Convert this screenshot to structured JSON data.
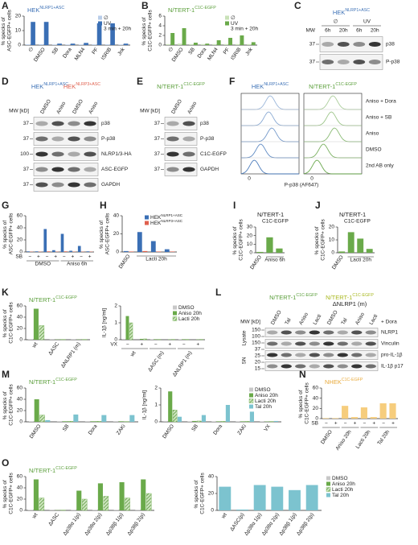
{
  "chart_data": [
    {
      "type": "bar",
      "letter": "A",
      "title": "HEK",
      "title_sup": "NLRP1+ASC",
      "title_color": "#3a6fb5",
      "ylabel": "% specks of ASC-EGFP+ cells",
      "categories": [
        "∅",
        "DMSO",
        "SB",
        "Dora",
        "MLN4",
        "PF",
        "ISRIB",
        "Jnk"
      ],
      "series": [
        {
          "name": "∅",
          "color": "#b9cde9",
          "values": [
            0.5,
            0.6,
            0.4,
            0.4,
            0.4,
            0.5,
            0.5,
            0.4
          ]
        },
        {
          "name": "UV",
          "color": "#3a6fb5",
          "values": [
            16,
            16,
            1,
            1,
            1.5,
            15,
            15,
            1
          ]
        }
      ],
      "legend": "top-right",
      "legend_note": "3 min + 20h",
      "ylim": [
        0,
        20
      ],
      "yticks": [
        0,
        10,
        20
      ]
    },
    {
      "type": "bar",
      "letter": "B",
      "title": "N/TERT-1",
      "title_sup": "C1C-EGFP",
      "title_color": "#5a9e3a",
      "ylabel": "% specks of C1C-EGFP+ cells",
      "categories": [
        "∅",
        "DMSO",
        "SB",
        "Dora",
        "MLN4",
        "PF",
        "ISRIB",
        "Jnk"
      ],
      "series": [
        {
          "name": "∅",
          "color": "#c9e2b8",
          "values": [
            0.2,
            0.3,
            0.2,
            0.2,
            0.2,
            0.2,
            0.2,
            0.2
          ]
        },
        {
          "name": "UV",
          "color": "#6aaa4a",
          "values": [
            2.5,
            3.5,
            0.5,
            0.3,
            1,
            1.5,
            2,
            0.6
          ]
        }
      ],
      "legend": "top-right",
      "legend_note": "3 min + 20h",
      "ylim": [
        0,
        6
      ],
      "yticks": [
        0,
        2,
        4,
        6
      ]
    },
    {
      "type": "bar",
      "letter": "G",
      "ylabel": "% specks of ASC-EGFP+ cells",
      "categories": [
        "−",
        "+",
        "−",
        "+",
        "−",
        "+",
        "−",
        "+"
      ],
      "row_label": "SB",
      "group_labels": [
        "DMSO",
        "Aniso 6h"
      ],
      "series": [
        {
          "color": "#3a6fb5",
          "values": [
            1,
            1,
            38,
            3,
            30,
            2,
            10,
            1
          ]
        },
        {
          "color": "#e0604e",
          "values": [
            0.5,
            0.5,
            1,
            0.5,
            1,
            0.5,
            0.5,
            0.5
          ]
        }
      ],
      "ylim": [
        0,
        60
      ],
      "yticks": [
        0,
        20,
        40,
        60
      ]
    },
    {
      "type": "bar",
      "letter": "H",
      "ylabel": "% specks of ASC-EGFP+ cells",
      "categories": [
        "DMSO",
        null,
        null,
        null
      ],
      "group_labels": [
        "Lacti 20h"
      ],
      "series": [
        {
          "name": "HEK",
          "name_sup": "NLRP1+ASC",
          "color": "#3a6fb5",
          "values": [
            1,
            22,
            12,
            3
          ]
        },
        {
          "name": "HEK",
          "name_sup": "NLRP3+ASC",
          "color": "#e0604e",
          "values": [
            0.5,
            1,
            0.5,
            0.5
          ]
        }
      ],
      "legend": "top-right",
      "ylim": [
        0,
        40
      ],
      "yticks": [
        0,
        20,
        40
      ]
    },
    {
      "type": "bar",
      "letter": "I",
      "title": "N/TERT-1",
      "subtitle": "C1C-EGFP",
      "title_color": "#5a9e3a",
      "ylabel": "% specks of C1C-EGFP+ cells",
      "categories": [
        "DMSO",
        null,
        null
      ],
      "group_labels": [
        "Aniso 6h"
      ],
      "series": [
        {
          "color": "#6aaa4a",
          "values": [
            1,
            18,
            5
          ]
        }
      ],
      "ylim": [
        0,
        30
      ],
      "yticks": [
        0,
        10,
        20,
        30
      ]
    },
    {
      "type": "bar",
      "letter": "J",
      "title": "N/TERT-1",
      "subtitle": "C1C-EGFP",
      "title_color": "#5a9e3a",
      "ylabel": "% specks of C1C-EGFP+ cells",
      "categories": [
        "DMSO",
        null,
        null,
        null
      ],
      "group_labels": [
        "Lacti 20h"
      ],
      "series": [
        {
          "color": "#6aaa4a",
          "values": [
            1,
            16,
            11,
            3
          ]
        }
      ],
      "ylim": [
        0,
        20
      ],
      "yticks": [
        0,
        10,
        20
      ]
    },
    {
      "type": "bar",
      "letter": "K",
      "title": "N/TERT-1",
      "title_sup": "C1C-EGFP",
      "title_color": "#5a9e3a",
      "ylabel": "% specks of C1C-EGFP+ cells",
      "categories": [
        "wt",
        "ΔASC",
        "ΔNLRP1 (m)"
      ],
      "series": [
        {
          "color": "#c8c8c8",
          "values": [
            1,
            0.5,
            0.5
          ]
        },
        {
          "color": "#6aaa4a",
          "values": [
            55,
            0.5,
            0.5
          ]
        },
        {
          "color": "#6aaa4a",
          "pattern": "hatched",
          "values": [
            25,
            0.5,
            0.5
          ]
        }
      ],
      "ylim": [
        0,
        60
      ],
      "yticks": [
        0,
        20,
        40,
        60
      ]
    },
    {
      "type": "bar",
      "ylabel": "IL-1β [ng/ml]",
      "categories": [
        "−",
        "+",
        "−",
        "+",
        "−",
        "+"
      ],
      "row_label": "VX",
      "group_labels": [
        "wt",
        "ΔASC (m)",
        "ΔNLRP1 (m)"
      ],
      "series": [
        {
          "name": "DMSO",
          "color": "#c8c8c8",
          "values": [
            0.05,
            0,
            0.02,
            0,
            0.02,
            0
          ]
        },
        {
          "name": "Aniso 20h",
          "color": "#6aaa4a",
          "values": [
            1.4,
            0.05,
            0.03,
            0.02,
            0.03,
            0.02
          ]
        },
        {
          "name": "Lacti 20h",
          "color": "#6aaa4a",
          "pattern": "hatched",
          "values": [
            1.0,
            0.05,
            0.02,
            0.02,
            0.02,
            0.02
          ]
        }
      ],
      "legend": "top-right",
      "ylim": [
        0,
        2
      ],
      "yticks": [
        0,
        1,
        2
      ]
    },
    {
      "type": "bar",
      "letter": "M",
      "title": "N/TERT-1",
      "title_sup": "C1C-EGFP",
      "title_color": "#5a9e3a",
      "ylabel": "% specks of C1C-EGFP+ cells",
      "categories": [
        "DMSO",
        "SB",
        "Dora",
        "ZAKi"
      ],
      "series": [
        {
          "color": "#c8c8c8",
          "values": [
            1,
            0.5,
            0.5,
            0.5
          ]
        },
        {
          "color": "#6aaa4a",
          "values": [
            40,
            1,
            1,
            1
          ]
        },
        {
          "color": "#6aaa4a",
          "pattern": "hatched",
          "values": [
            12,
            1,
            1,
            0.5
          ]
        },
        {
          "color": "#7cc3cf",
          "values": [
            3,
            13,
            12,
            12
          ]
        }
      ],
      "ylim": [
        0,
        60
      ],
      "yticks": [
        0,
        20,
        40,
        60
      ]
    },
    {
      "type": "bar",
      "ylabel": "IL-1β [ng/ml]",
      "categories": [
        "DMSO",
        "SB",
        "Dora",
        "ZAKi",
        "VX"
      ],
      "series": [
        {
          "name": "DMSO",
          "color": "#c8c8c8",
          "values": [
            0.05,
            0.02,
            0.02,
            0.02,
            0.02
          ]
        },
        {
          "name": "Aniso 20h",
          "color": "#6aaa4a",
          "values": [
            1.8,
            0.05,
            0.03,
            0.03,
            0.02
          ]
        },
        {
          "name": "Lacti 20h",
          "color": "#6aaa4a",
          "pattern": "hatched",
          "values": [
            0.7,
            0.05,
            0.03,
            0.03,
            0.02
          ]
        },
        {
          "name": "Tal 20h",
          "color": "#7cc3cf",
          "values": [
            0.3,
            0.4,
            1.0,
            0.6,
            0.05
          ]
        }
      ],
      "legend": "top-right",
      "ylim": [
        0,
        2
      ],
      "yticks": [
        0,
        1,
        2
      ]
    },
    {
      "type": "bar",
      "letter": "N",
      "title": "NHEK",
      "title_sup": "C1C-EGFP",
      "title_color": "#e8a93a",
      "ylabel": "% specks of C1C-EGFP+ cells",
      "categories": [
        "−",
        "+",
        "−",
        "+",
        "−",
        "+",
        "−",
        "+"
      ],
      "row_label": "SB",
      "group_labels": [
        "DMSO",
        "Aniso 20h",
        "Lacti 20h",
        "Tal 20h"
      ],
      "series": [
        {
          "color": "#f6cd7d",
          "values": [
            1,
            1,
            25,
            3,
            22,
            3,
            30,
            30
          ]
        }
      ],
      "ylim": [
        0,
        60
      ],
      "yticks": [
        0,
        20,
        40,
        60
      ]
    },
    {
      "type": "bar",
      "letter": "O",
      "title": "N/TERT-1",
      "title_sup": "C1C-EGFP",
      "title_color": "#5a9e3a",
      "ylabel": "% specks of C1C-EGFP+ cells",
      "categories": [
        "wt",
        "ΔASC",
        "Δp38α 1(p)",
        "Δp38α 2(p)",
        "Δp38β 1(p)",
        "Δp38β 2(p)"
      ],
      "series": [
        {
          "color": "#c8c8c8",
          "values": [
            1,
            0.5,
            1,
            1,
            1,
            1
          ]
        },
        {
          "color": "#6aaa4a",
          "values": [
            55,
            0.5,
            35,
            48,
            50,
            55
          ]
        },
        {
          "color": "#6aaa4a",
          "pattern": "hatched",
          "values": [
            22,
            0.5,
            20,
            25,
            22,
            30
          ]
        }
      ],
      "ylim": [
        0,
        60
      ],
      "yticks": [
        0,
        20,
        40,
        60
      ]
    },
    {
      "type": "bar",
      "ylabel": "% specks of C1C-EGFP+ cells",
      "categories": [
        "wt",
        "ΔASC(p)",
        "Δp38α 1(p)",
        "Δp38α 2(p)",
        "Δp38β 1(p)",
        "Δp38β 2(p)"
      ],
      "series": [
        {
          "color": "#7cc3cf",
          "values": [
            28,
            1,
            30,
            28,
            24,
            30
          ]
        }
      ],
      "legend": "right",
      "legend_entries": [
        {
          "name": "DMSO",
          "color": "#c8c8c8"
        },
        {
          "name": "Aniso 20h",
          "color": "#6aaa4a"
        },
        {
          "name": "Lacti 20h",
          "color": "#6aaa4a",
          "pattern": "hatched"
        },
        {
          "name": "Tal 20h",
          "color": "#7cc3cf"
        }
      ],
      "ylim": [
        0,
        40
      ],
      "yticks": [
        0,
        20,
        40
      ]
    }
  ],
  "blots": [
    {
      "letter": "C",
      "titles": [
        {
          "text": "HEK",
          "sup": "NLRP1+ASC",
          "color": "#3a6fb5"
        }
      ],
      "mw_label": "MW",
      "conditions": [
        "∅",
        "UV"
      ],
      "lanes": [
        "6h",
        "20h",
        "6h",
        "20h"
      ],
      "bands": [
        "p38",
        "P-p38"
      ],
      "mw": [
        "37",
        "37"
      ]
    },
    {
      "letter": "D",
      "titles": [
        {
          "text": "HEK",
          "sup": "NLRP1+ASC",
          "color": "#3a6fb5"
        },
        {
          "text": "HEK",
          "sup": "NLRP3+ASC",
          "color": "#e0604e"
        }
      ],
      "mw_label": "MW [kD]",
      "lanes": [
        "DMSO",
        "Aniso",
        "DMSO",
        "Aniso"
      ],
      "bands": [
        "p38",
        "P-p38",
        "NLRP1/3-HA",
        "ASC-EGFP",
        "GAPDH"
      ],
      "mw": [
        "37",
        "37",
        "100",
        "37",
        "37"
      ]
    },
    {
      "letter": "E",
      "titles": [
        {
          "text": "N/TERT-1",
          "sup": "C1C-EGFP",
          "color": "#5a9e3a"
        }
      ],
      "mw_label": "MW [kD]",
      "lanes": [
        "DMSO",
        "Aniso"
      ],
      "bands": [
        "p38",
        "P-p38",
        "C1C-EGFP",
        "GAPDH"
      ],
      "mw": [
        "37",
        "37",
        "37",
        "37"
      ]
    },
    {
      "letter": "L",
      "titles": [
        {
          "text": "N/TERT-1",
          "sup": "C1C-EGFP",
          "color": "#5a9e3a"
        },
        {
          "text": "N/TERT-1",
          "sup": "C1C-EGFP",
          "line2": "ΔNLRP1 (m)",
          "color": "#a8b820"
        }
      ],
      "mw_label": "MW [kD]",
      "treatment": "+ Dora",
      "lanes": [
        "DMSO",
        "Tal",
        "Aniso",
        "Lacti",
        "DMSO",
        "Tal",
        "Aniso",
        "Lacti"
      ],
      "sections": [
        "Lysate",
        "SN"
      ],
      "bands": [
        "NLRP1",
        "Vinculin",
        "pro-IL-1β",
        "IL-1β p17"
      ],
      "mw": [
        "150",
        "100",
        "150",
        "37",
        "25",
        "20",
        "15"
      ]
    }
  ],
  "flow": {
    "letter": "F",
    "titles": [
      {
        "text": "HEK",
        "sup": "NLRP1+ASC",
        "color": "#3a6fb5"
      },
      {
        "text": "N/TERT-1",
        "sup": "C1C-EGFP",
        "color": "#5a9e3a"
      }
    ],
    "conditions": [
      "Aniso + Dora",
      "Aniso + SB",
      "Aniso",
      "DMSO",
      "2nd AB only"
    ],
    "zero": "0",
    "xlabel": "P-p38 (AF647)"
  }
}
